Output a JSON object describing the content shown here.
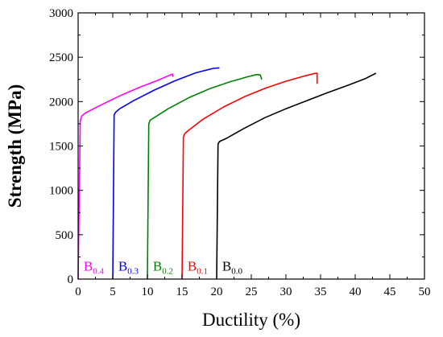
{
  "chart_data": {
    "type": "line",
    "xlabel": "Ductility (%)",
    "ylabel": "Strength (MPa)",
    "xlim": [
      0,
      50
    ],
    "ylim": [
      0,
      3000
    ],
    "xticks": [
      "0",
      "5",
      "10",
      "15",
      "20",
      "25",
      "30",
      "35",
      "40",
      "45",
      "50"
    ],
    "yticks": [
      "0",
      "500",
      "1000",
      "1500",
      "2000",
      "2500",
      "3000"
    ],
    "grid": false,
    "series": [
      {
        "name": "B0.4",
        "base": "B",
        "sub": "0.4",
        "color": "#ff00ff",
        "x": [
          0.0,
          0.3,
          0.5,
          1.0,
          3.0,
          6.0,
          9.0,
          11.5,
          13.0,
          13.6,
          13.7
        ],
        "y": [
          0,
          1780,
          1835,
          1870,
          1950,
          2065,
          2165,
          2240,
          2290,
          2310,
          2280
        ]
      },
      {
        "name": "B0.3",
        "base": "B",
        "sub": "0.3",
        "color": "#0000ff",
        "x": [
          5.0,
          5.2,
          5.4,
          6.0,
          8.0,
          11.0,
          14.0,
          17.0,
          19.5,
          20.4
        ],
        "y": [
          0,
          1850,
          1880,
          1920,
          2010,
          2130,
          2235,
          2325,
          2375,
          2380
        ]
      },
      {
        "name": "B0.2",
        "base": "B",
        "sub": "0.2",
        "color": "#008000",
        "x": [
          10.0,
          10.2,
          10.4,
          11.0,
          13.0,
          16.0,
          19.0,
          22.0,
          24.5,
          25.8,
          26.3,
          26.5
        ],
        "y": [
          0,
          1750,
          1790,
          1820,
          1920,
          2045,
          2145,
          2225,
          2280,
          2305,
          2300,
          2250
        ]
      },
      {
        "name": "B0.1",
        "base": "B",
        "sub": "0.1",
        "color": "#ff0000",
        "x": [
          15.0,
          15.2,
          15.4,
          16.0,
          18.0,
          21.0,
          24.0,
          27.0,
          30.0,
          32.5,
          34.0,
          34.5,
          34.5
        ],
        "y": [
          0,
          1600,
          1640,
          1680,
          1800,
          1940,
          2055,
          2150,
          2230,
          2285,
          2315,
          2320,
          2200
        ]
      },
      {
        "name": "B0.0",
        "base": "B",
        "sub": "0.0",
        "color": "#000000",
        "x": [
          20.0,
          20.2,
          20.4,
          21.5,
          24.0,
          27.0,
          30.0,
          33.0,
          36.0,
          39.0,
          41.5,
          43.0
        ],
        "y": [
          0,
          1520,
          1550,
          1590,
          1700,
          1820,
          1920,
          2010,
          2100,
          2185,
          2260,
          2320
        ]
      }
    ],
    "annotations": [
      {
        "base": "B",
        "sub": "0.4",
        "color": "#ff00ff",
        "x": 0.8,
        "y": 60
      },
      {
        "base": "B",
        "sub": "0.3",
        "color": "#0000ff",
        "x": 5.8,
        "y": 60
      },
      {
        "base": "B",
        "sub": "0.2",
        "color": "#008000",
        "x": 10.8,
        "y": 60
      },
      {
        "base": "B",
        "sub": "0.1",
        "color": "#ff0000",
        "x": 15.8,
        "y": 60
      },
      {
        "base": "B",
        "sub": "0.0",
        "color": "#000000",
        "x": 20.8,
        "y": 60
      }
    ]
  }
}
